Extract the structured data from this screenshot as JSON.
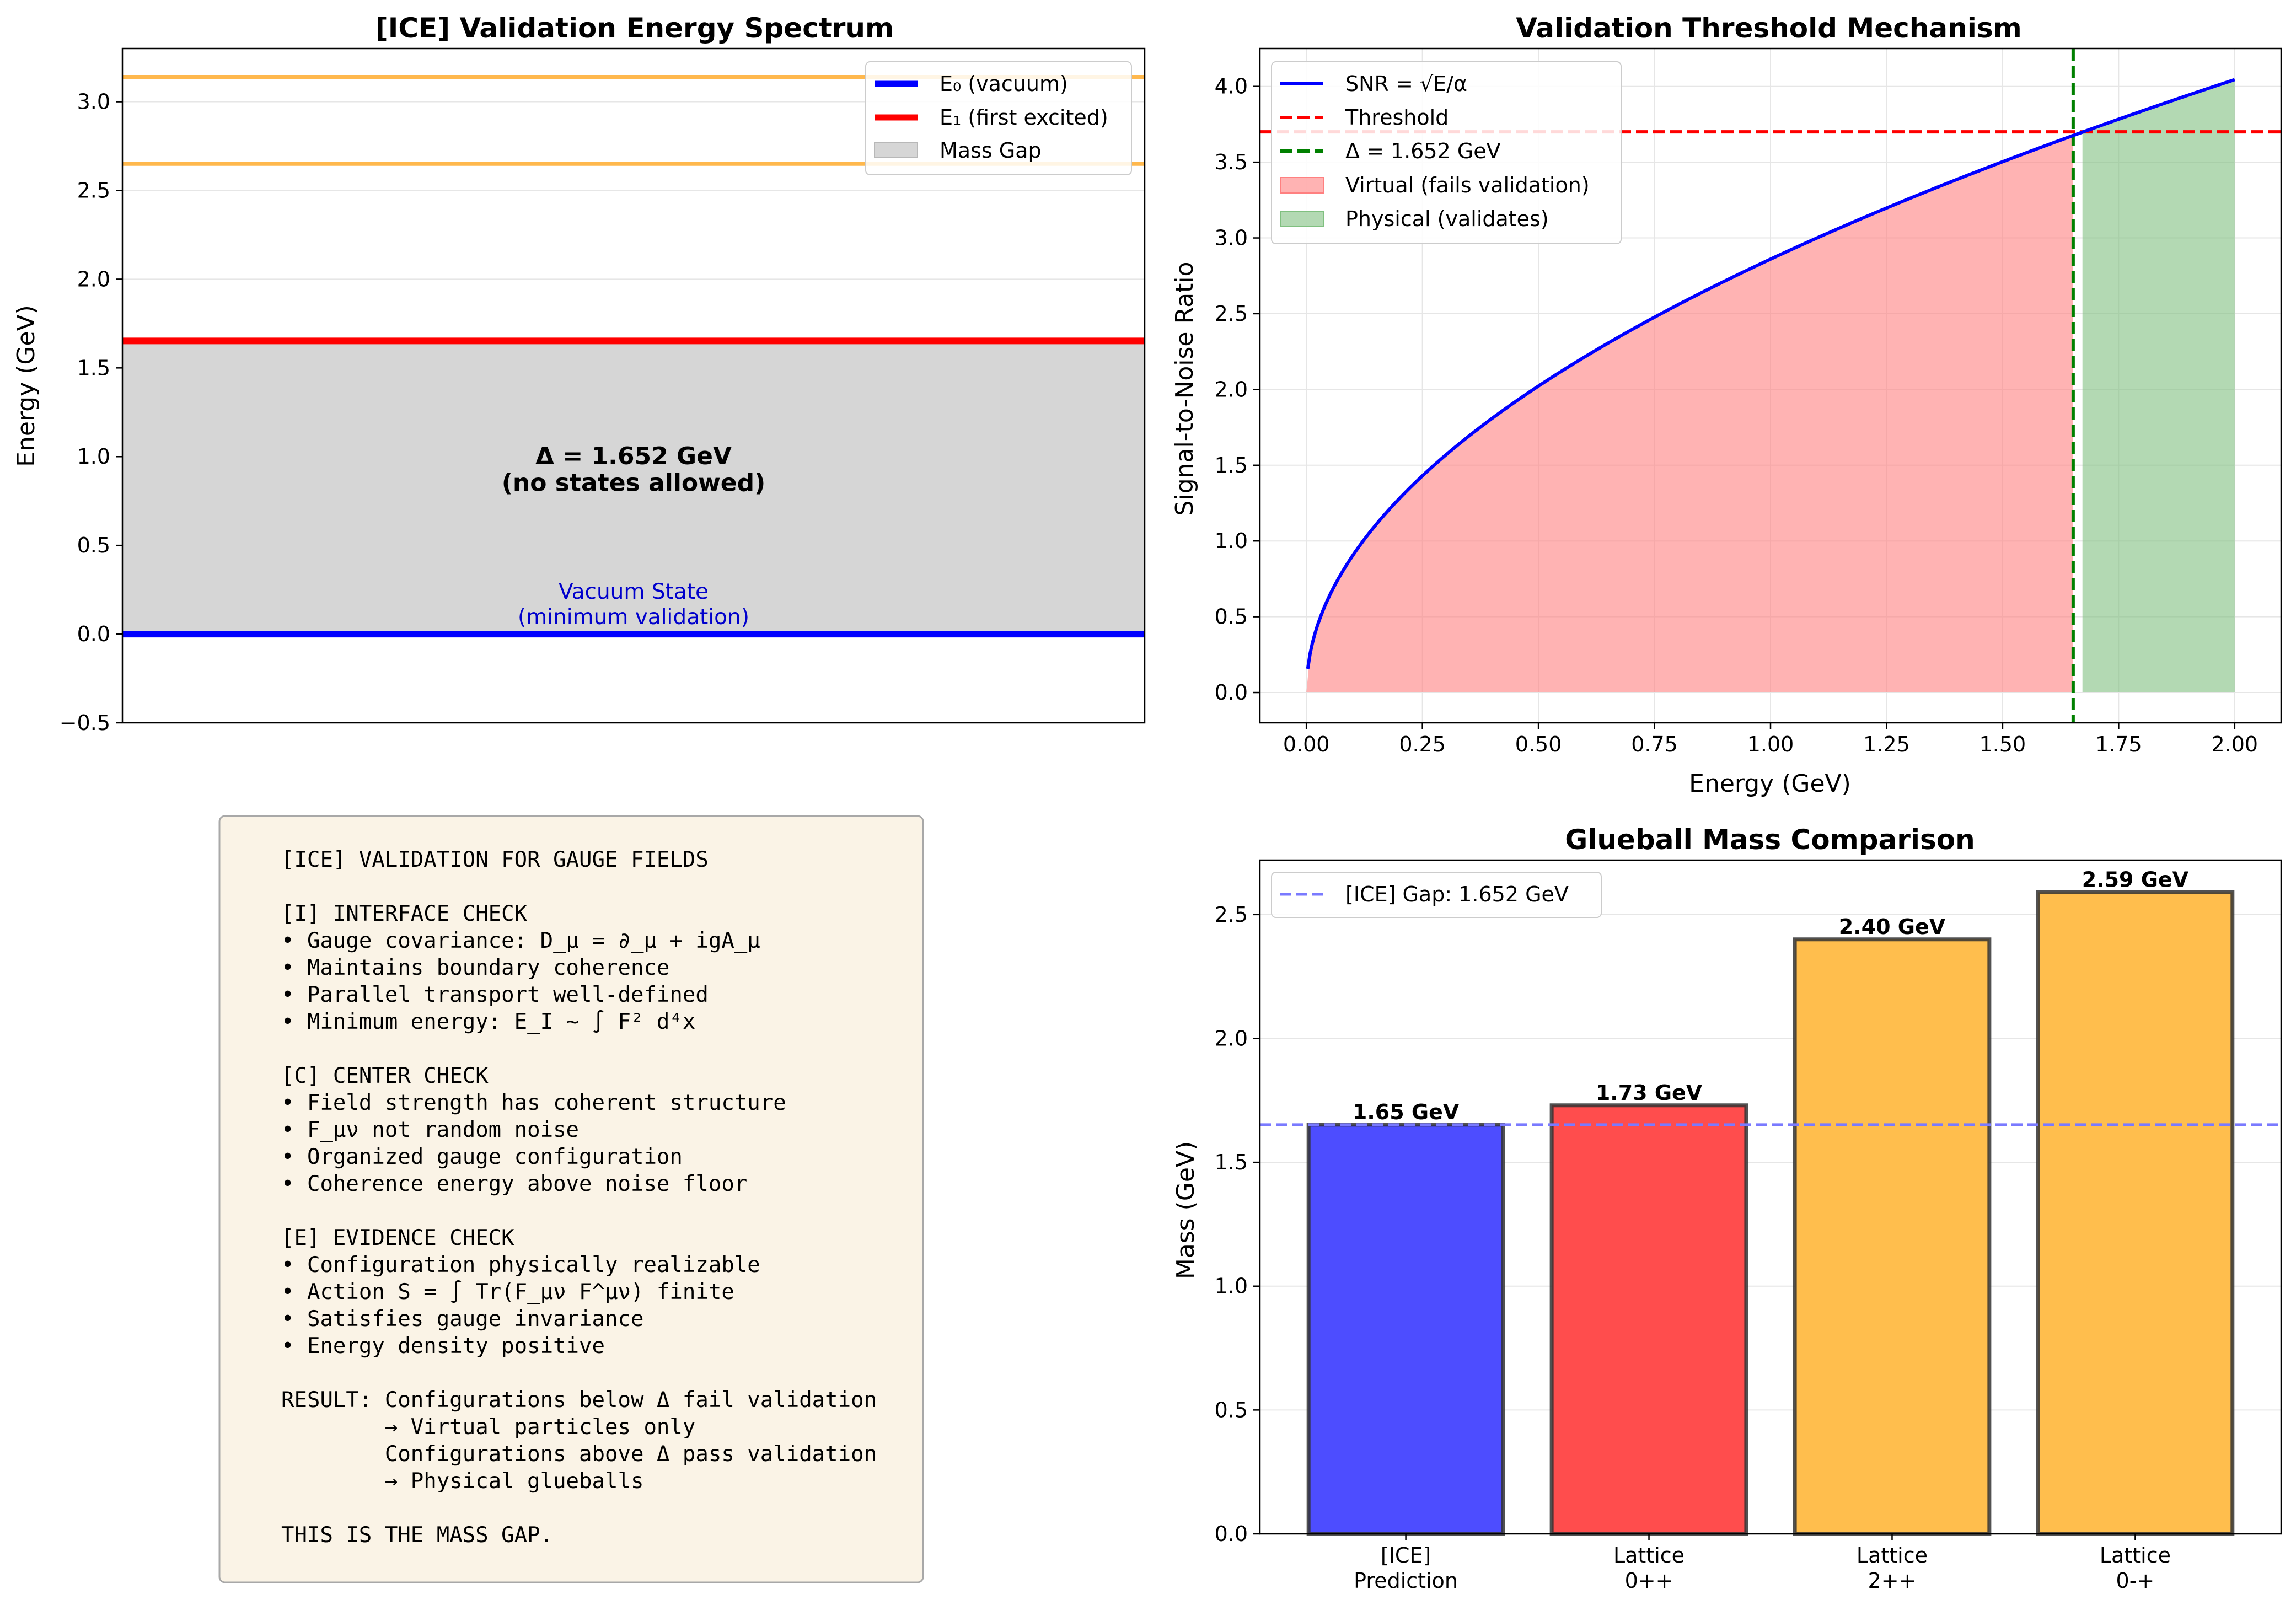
{
  "chart_data": [
    {
      "id": "spectrum",
      "type": "line",
      "title": "[ICE] Validation Energy Spectrum",
      "xlabel": "",
      "ylabel": "Energy (GeV)",
      "ylim": [
        -0.5,
        3.3
      ],
      "yticks": [
        "−0.5",
        "0.0",
        "0.5",
        "1.0",
        "1.5",
        "2.0",
        "2.5",
        "3.0"
      ],
      "yticks_values": [
        -0.5,
        0.0,
        0.5,
        1.0,
        1.5,
        2.0,
        2.5,
        3.0
      ],
      "levels": [
        {
          "name": "E₀ (vacuum)",
          "energy": 0.0,
          "color": "#0000ff"
        },
        {
          "name": "E₁ (first excited)",
          "energy": 1.652,
          "color": "#ff0000"
        }
      ],
      "higher_levels": [
        {
          "energy": 2.65,
          "color": "#ffb84d"
        },
        {
          "energy": 3.14,
          "color": "#ffb84d"
        }
      ],
      "gap_region": {
        "name": "Mass Gap",
        "from": 0.0,
        "to": 1.652,
        "color": "#d6d6d6"
      },
      "annotations": [
        {
          "text": "Δ = 1.652 GeV",
          "y": 1.0
        },
        {
          "text": "(no states allowed)",
          "y": 0.85
        }
      ],
      "vacuum_label": [
        "Vacuum State",
        "(minimum validation)"
      ],
      "legend": [
        "E₀ (vacuum)",
        "E₁ (first excited)",
        "Mass Gap"
      ],
      "legend_position": "upper right",
      "grid": true
    },
    {
      "id": "threshold",
      "type": "area",
      "title": "Validation Threshold Mechanism",
      "xlabel": "Energy (GeV)",
      "ylabel": "Signal-to-Noise Ratio",
      "xlim": [
        -0.1,
        2.1
      ],
      "ylim": [
        -0.2,
        4.25
      ],
      "xticks": [
        "0.00",
        "0.25",
        "0.50",
        "0.75",
        "1.00",
        "1.25",
        "1.50",
        "1.75",
        "2.00"
      ],
      "xticks_values": [
        0,
        0.25,
        0.5,
        0.75,
        1.0,
        1.25,
        1.5,
        1.75,
        2.0
      ],
      "yticks": [
        "0.0",
        "0.5",
        "1.0",
        "1.5",
        "2.0",
        "2.5",
        "3.0",
        "3.5",
        "4.0"
      ],
      "yticks_values": [
        0,
        0.5,
        1.0,
        1.5,
        2.0,
        2.5,
        3.0,
        3.5,
        4.0
      ],
      "curve": {
        "name": "SNR = √E/α",
        "x_min": 0.0,
        "x_max": 2.0,
        "coefficient": 2.86,
        "color": "#0000ff"
      },
      "threshold": {
        "name": "Threshold",
        "value": 3.7,
        "color": "#ff0000"
      },
      "gap_line": {
        "name": "Δ = 1.652 GeV",
        "value": 1.652,
        "color": "#008000"
      },
      "fills": [
        {
          "name": "Virtual (fails validation)",
          "from": 0.0,
          "to": 1.652,
          "color": "#ff8080"
        },
        {
          "name": "Physical (validates)",
          "from": 1.652,
          "to": 2.0,
          "color": "#80c080"
        }
      ],
      "legend": [
        "SNR = √E/α",
        "Threshold",
        "Δ = 1.652 GeV",
        "Virtual (fails validation)",
        "Physical (validates)"
      ],
      "legend_position": "upper left",
      "grid": true
    },
    {
      "id": "glueball",
      "type": "bar",
      "title": "Glueball Mass Comparison",
      "xlabel": "",
      "ylabel": "Mass (GeV)",
      "ylim": [
        0,
        2.72
      ],
      "yticks": [
        "0.0",
        "0.5",
        "1.0",
        "1.5",
        "2.0",
        "2.5"
      ],
      "yticks_values": [
        0,
        0.5,
        1.0,
        1.5,
        2.0,
        2.5
      ],
      "categories": [
        [
          "[ICE]",
          "Prediction"
        ],
        [
          "Lattice",
          "0++"
        ],
        [
          "Lattice",
          "2++"
        ],
        [
          "Lattice",
          "0-+"
        ]
      ],
      "values": [
        1.652,
        1.73,
        2.4,
        2.59
      ],
      "value_labels": [
        "1.65 GeV",
        "1.73 GeV",
        "2.40 GeV",
        "2.59 GeV"
      ],
      "colors": [
        "#4d4dff",
        "#ff4d4d",
        "#ffbe4d",
        "#ffbe4d"
      ],
      "reference_line": {
        "name": "[ICE] Gap: 1.652 GeV",
        "value": 1.652,
        "color": "#7a7aff"
      },
      "legend": [
        "[ICE] Gap: 1.652 GeV"
      ],
      "legend_position": "upper left",
      "grid": true
    }
  ],
  "textbox": {
    "lines": [
      "[ICE] VALIDATION FOR GAUGE FIELDS",
      "",
      "[I] INTERFACE CHECK",
      "• Gauge covariance: D_μ = ∂_μ + igA_μ",
      "• Maintains boundary coherence",
      "• Parallel transport well-defined",
      "• Minimum energy: E_I ~ ∫ F² d⁴x",
      "",
      "[C] CENTER CHECK",
      "• Field strength has coherent structure",
      "• F_μν not random noise",
      "• Organized gauge configuration",
      "• Coherence energy above noise floor",
      "",
      "[E] EVIDENCE CHECK",
      "• Configuration physically realizable",
      "• Action S = ∫ Tr(F_μν F^μν) finite",
      "• Satisfies gauge invariance",
      "• Energy density positive",
      "",
      "RESULT: Configurations below Δ fail validation",
      "        → Virtual particles only",
      "        Configurations above Δ pass validation",
      "        → Physical glueballs",
      "",
      "THIS IS THE MASS GAP."
    ],
    "background": "#faf3e6",
    "border": "#a8a8a8"
  }
}
